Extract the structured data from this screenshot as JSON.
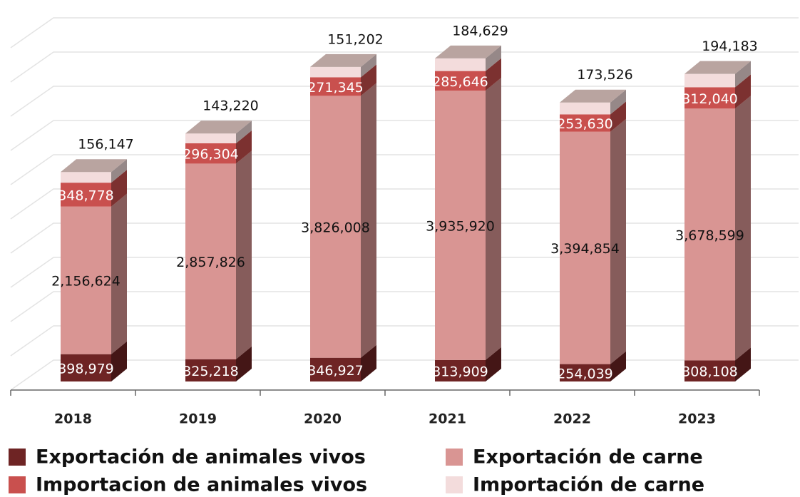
{
  "chart_data": {
    "type": "bar3d_stacked",
    "categories": [
      "2018",
      "2019",
      "2020",
      "2021",
      "2022",
      "2023"
    ],
    "series": [
      {
        "name": "Exportación de animales vivos",
        "color": "#6e2424",
        "values": [
          398979,
          325218,
          346927,
          313909,
          254039,
          308108
        ],
        "value_labels": [
          "398,979",
          "325,218",
          "346,927",
          "313,909",
          "254,039",
          "308,108"
        ]
      },
      {
        "name": "Exportación de carne",
        "color": "#d99593",
        "values": [
          2156624,
          2857826,
          3826008,
          3935920,
          3394854,
          3678599
        ],
        "value_labels": [
          "2,156,624",
          "2,857,826",
          "3,826,008",
          "3,935,920",
          "3,394,854",
          "3,678,599"
        ]
      },
      {
        "name": "Importacion de animales vivos",
        "color": "#c9504e",
        "values": [
          348778,
          296304,
          271345,
          285646,
          253630,
          312040
        ],
        "value_labels": [
          "348,778",
          "296,304",
          "271,345",
          "285,646",
          "253,630",
          "312,040"
        ]
      },
      {
        "name": "Importación de carne",
        "color": "#f3dcdc",
        "values": [
          156147,
          143220,
          151202,
          184629,
          173526,
          194183
        ],
        "value_labels": [
          "156,147",
          "143,220",
          "151,202",
          "184,629",
          "173,526",
          "194,183"
        ]
      }
    ],
    "ylim": [
      0,
      5000000
    ],
    "yticks": [
      0,
      500000,
      1000000,
      1500000,
      2000000,
      2500000,
      3000000,
      3500000,
      4000000,
      4500000,
      5000000
    ],
    "grid": true,
    "legend": "bottom"
  }
}
